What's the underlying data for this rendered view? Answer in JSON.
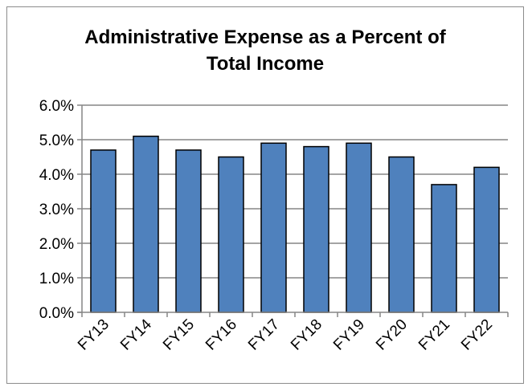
{
  "chart_data": {
    "type": "bar",
    "title": "Administrative Expense as a Percent of Total Income",
    "title_lines": [
      "Administrative Expense as a Percent of",
      "Total Income"
    ],
    "categories": [
      "FY13",
      "FY14",
      "FY15",
      "FY16",
      "FY17",
      "FY18",
      "FY19",
      "FY20",
      "FY21",
      "FY22"
    ],
    "values": [
      4.7,
      5.1,
      4.7,
      4.5,
      4.9,
      4.8,
      4.9,
      4.5,
      3.7,
      4.2
    ],
    "y_ticks": [
      0.0,
      1.0,
      2.0,
      3.0,
      4.0,
      5.0,
      6.0
    ],
    "y_tick_labels": [
      "0.0%",
      "1.0%",
      "2.0%",
      "3.0%",
      "4.0%",
      "5.0%",
      "6.0%"
    ],
    "ylim": [
      0,
      6
    ],
    "xlabel": "",
    "ylabel": "",
    "grid": true,
    "legend": false,
    "bar_color": "#4f81bd",
    "bar_edge_color": "#000000",
    "grid_color": "#868686"
  }
}
